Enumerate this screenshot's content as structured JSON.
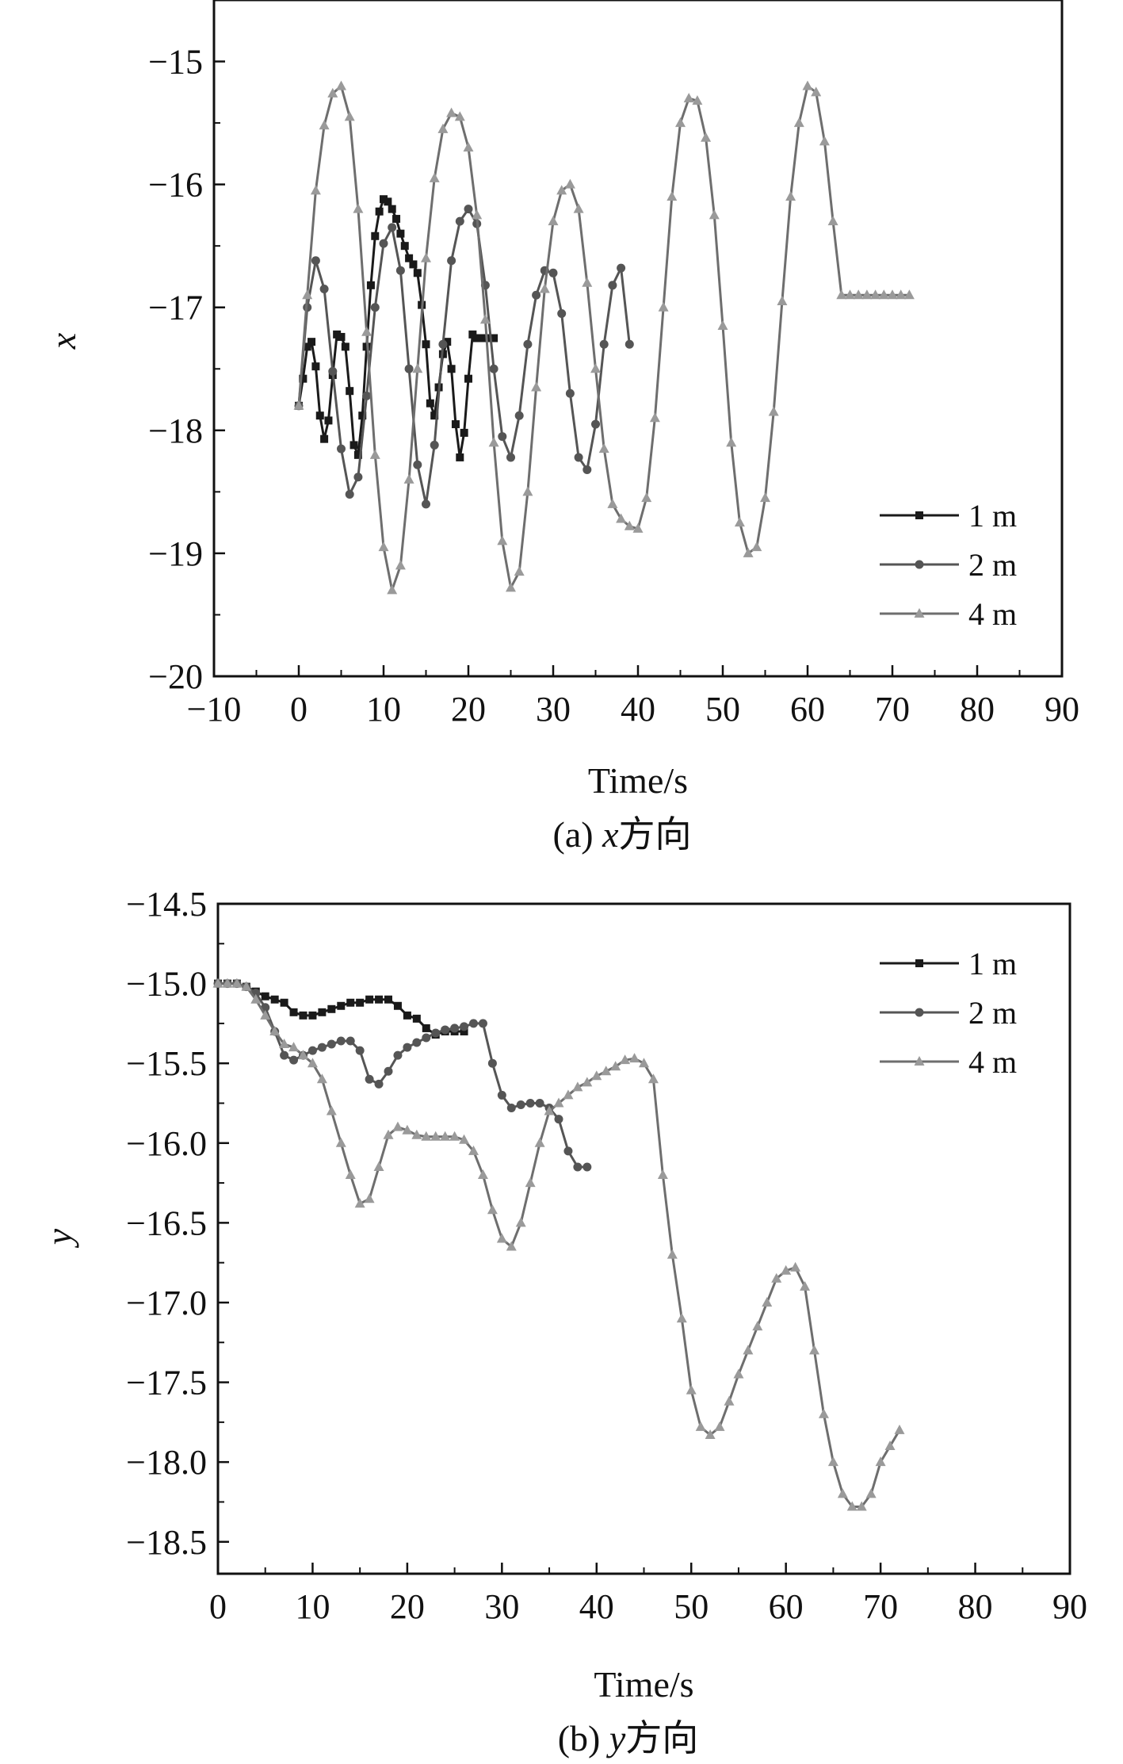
{
  "chart_data": [
    {
      "type": "line",
      "xlabel": "Time/s",
      "ylabel": "x",
      "caption_prefix": "(a)",
      "caption_var": "x",
      "caption_suffix": "方向",
      "xlim": [
        -10,
        90
      ],
      "ylim": [
        -20,
        -14.5
      ],
      "xticks": [
        -10,
        0,
        10,
        20,
        30,
        40,
        50,
        60,
        70,
        80,
        90
      ],
      "yticks": [
        -20,
        -19,
        -18,
        -17,
        -16,
        -15
      ],
      "ytick_labels": [
        "−20",
        "−19",
        "−18",
        "−17",
        "−16",
        "−15"
      ],
      "xtick_labels": [
        "−10",
        "0",
        "10",
        "20",
        "30",
        "40",
        "50",
        "60",
        "70",
        "80",
        "90"
      ],
      "legend_position": "bottom-right",
      "series": [
        {
          "name": "1 m",
          "marker": "square",
          "color": "#1a1a1a",
          "x": [
            0,
            0.5,
            1,
            1.5,
            2,
            2.5,
            3,
            3.5,
            4,
            4.5,
            5,
            5.5,
            6,
            6.5,
            7,
            7.5,
            8,
            8.5,
            9,
            9.5,
            10,
            10.5,
            11,
            11.5,
            12,
            12.5,
            13,
            13.5,
            14,
            14.5,
            15,
            15.5,
            16,
            16.5,
            17,
            17.5,
            18,
            18.5,
            19,
            19.5,
            20,
            20.5,
            21,
            21.5,
            22,
            22.5,
            23
          ],
          "y": [
            -17.8,
            -17.58,
            -17.32,
            -17.28,
            -17.48,
            -17.88,
            -18.07,
            -17.92,
            -17.55,
            -17.22,
            -17.24,
            -17.32,
            -17.68,
            -18.12,
            -18.2,
            -17.88,
            -17.32,
            -16.82,
            -16.42,
            -16.22,
            -16.12,
            -16.14,
            -16.2,
            -16.28,
            -16.4,
            -16.5,
            -16.6,
            -16.65,
            -16.72,
            -16.98,
            -17.3,
            -17.78,
            -17.88,
            -17.65,
            -17.38,
            -17.28,
            -17.5,
            -17.95,
            -18.22,
            -18.02,
            -17.58,
            -17.22,
            -17.25,
            -17.25,
            -17.25,
            -17.25,
            -17.25
          ]
        },
        {
          "name": "2 m",
          "marker": "circle",
          "color": "#555555",
          "x": [
            0,
            1,
            2,
            3,
            4,
            5,
            6,
            7,
            8,
            9,
            10,
            11,
            12,
            13,
            14,
            15,
            16,
            17,
            18,
            19,
            20,
            21,
            22,
            23,
            24,
            25,
            26,
            27,
            28,
            29,
            30,
            31,
            32,
            33,
            34,
            35,
            36,
            37,
            38,
            39
          ],
          "y": [
            -17.8,
            -17.0,
            -16.62,
            -16.85,
            -17.52,
            -18.15,
            -18.52,
            -18.38,
            -17.72,
            -17.0,
            -16.48,
            -16.35,
            -16.7,
            -17.5,
            -18.28,
            -18.6,
            -18.12,
            -17.3,
            -16.62,
            -16.3,
            -16.2,
            -16.32,
            -16.82,
            -17.5,
            -18.05,
            -18.22,
            -17.88,
            -17.3,
            -16.9,
            -16.7,
            -16.72,
            -17.05,
            -17.7,
            -18.22,
            -18.32,
            -17.95,
            -17.3,
            -16.82,
            -16.68,
            -17.3
          ]
        },
        {
          "name": "4 m",
          "marker": "triangle",
          "color": "#6e6e6e",
          "x": [
            0,
            1,
            2,
            3,
            4,
            5,
            6,
            7,
            8,
            9,
            10,
            11,
            12,
            13,
            14,
            15,
            16,
            17,
            18,
            19,
            20,
            21,
            22,
            23,
            24,
            25,
            26,
            27,
            28,
            29,
            30,
            31,
            32,
            33,
            34,
            35,
            36,
            37,
            38,
            39,
            40,
            41,
            42,
            43,
            44,
            45,
            46,
            47,
            48,
            49,
            50,
            51,
            52,
            53,
            54,
            55,
            56,
            57,
            58,
            59,
            60,
            61,
            62,
            63,
            64,
            65,
            66,
            67,
            68,
            69,
            70,
            71,
            72
          ],
          "y": [
            -17.8,
            -16.9,
            -16.05,
            -15.52,
            -15.26,
            -15.2,
            -15.45,
            -16.2,
            -17.2,
            -18.2,
            -18.95,
            -19.3,
            -19.1,
            -18.4,
            -17.5,
            -16.6,
            -15.95,
            -15.55,
            -15.42,
            -15.45,
            -15.7,
            -16.25,
            -17.1,
            -18.1,
            -18.9,
            -19.28,
            -19.15,
            -18.5,
            -17.65,
            -16.85,
            -16.3,
            -16.05,
            -16.0,
            -16.2,
            -16.8,
            -17.5,
            -18.15,
            -18.6,
            -18.72,
            -18.78,
            -18.8,
            -18.55,
            -17.9,
            -17.0,
            -16.1,
            -15.5,
            -15.3,
            -15.32,
            -15.62,
            -16.25,
            -17.15,
            -18.1,
            -18.75,
            -19.0,
            -18.95,
            -18.55,
            -17.85,
            -16.95,
            -16.1,
            -15.5,
            -15.2,
            -15.25,
            -15.65,
            -16.3,
            -16.9,
            -16.9,
            -16.9,
            -16.9,
            -16.9,
            -16.9,
            -16.9,
            -16.9,
            -16.9
          ]
        }
      ]
    },
    {
      "type": "line",
      "xlabel": "Time/s",
      "ylabel": "y",
      "caption_prefix": "(b)",
      "caption_var": "y",
      "caption_suffix": "方向",
      "xlim": [
        0,
        90
      ],
      "ylim": [
        -18.7,
        -14.5
      ],
      "xticks": [
        0,
        10,
        20,
        30,
        40,
        50,
        60,
        70,
        80,
        90
      ],
      "xtick_labels": [
        "0",
        "10",
        "20",
        "30",
        "40",
        "50",
        "60",
        "70",
        "80",
        "90"
      ],
      "yticks": [
        -18.5,
        -18.0,
        -17.5,
        -17.0,
        -16.5,
        -16.0,
        -15.5,
        -15.0,
        -14.5
      ],
      "ytick_labels": [
        "−18.5",
        "−18.0",
        "−17.5",
        "−17.0",
        "−16.5",
        "−16.0",
        "−15.5",
        "−15.0",
        "−14.5"
      ],
      "legend_position": "top-right",
      "series": [
        {
          "name": "1 m",
          "marker": "square",
          "color": "#1a1a1a",
          "x": [
            0,
            1,
            2,
            3,
            4,
            5,
            6,
            7,
            8,
            9,
            10,
            11,
            12,
            13,
            14,
            15,
            16,
            17,
            18,
            19,
            20,
            21,
            22,
            23,
            24,
            25,
            26
          ],
          "y": [
            -15.0,
            -15.0,
            -15.0,
            -15.02,
            -15.05,
            -15.08,
            -15.1,
            -15.12,
            -15.18,
            -15.2,
            -15.2,
            -15.18,
            -15.16,
            -15.14,
            -15.12,
            -15.12,
            -15.1,
            -15.1,
            -15.1,
            -15.14,
            -15.2,
            -15.22,
            -15.28,
            -15.32,
            -15.3,
            -15.3,
            -15.3
          ]
        },
        {
          "name": "2 m",
          "marker": "circle",
          "color": "#555555",
          "x": [
            0,
            1,
            2,
            3,
            4,
            5,
            6,
            7,
            8,
            9,
            10,
            11,
            12,
            13,
            14,
            15,
            16,
            17,
            18,
            19,
            20,
            21,
            22,
            23,
            24,
            25,
            26,
            27,
            28,
            29,
            30,
            31,
            32,
            33,
            34,
            35,
            36,
            37,
            38,
            39
          ],
          "y": [
            -15.0,
            -15.0,
            -15.0,
            -15.02,
            -15.06,
            -15.15,
            -15.3,
            -15.45,
            -15.48,
            -15.45,
            -15.42,
            -15.4,
            -15.38,
            -15.36,
            -15.36,
            -15.42,
            -15.6,
            -15.63,
            -15.55,
            -15.45,
            -15.4,
            -15.37,
            -15.34,
            -15.31,
            -15.29,
            -15.28,
            -15.27,
            -15.25,
            -15.25,
            -15.5,
            -15.7,
            -15.78,
            -15.76,
            -15.75,
            -15.75,
            -15.78,
            -15.85,
            -16.05,
            -16.15,
            -16.15
          ]
        },
        {
          "name": "4 m",
          "marker": "triangle",
          "color": "#6e6e6e",
          "x": [
            0,
            1,
            2,
            3,
            4,
            5,
            6,
            7,
            8,
            9,
            10,
            11,
            12,
            13,
            14,
            15,
            16,
            17,
            18,
            19,
            20,
            21,
            22,
            23,
            24,
            25,
            26,
            27,
            28,
            29,
            30,
            31,
            32,
            33,
            34,
            35,
            36,
            37,
            38,
            39,
            40,
            41,
            42,
            43,
            44,
            45,
            46,
            47,
            48,
            49,
            50,
            51,
            52,
            53,
            54,
            55,
            56,
            57,
            58,
            59,
            60,
            61,
            62,
            63,
            64,
            65,
            66,
            67,
            68,
            69,
            70,
            71,
            72
          ],
          "y": [
            -15.0,
            -15.0,
            -15.0,
            -15.02,
            -15.1,
            -15.2,
            -15.3,
            -15.38,
            -15.4,
            -15.45,
            -15.5,
            -15.6,
            -15.8,
            -16.0,
            -16.2,
            -16.38,
            -16.35,
            -16.15,
            -15.95,
            -15.9,
            -15.92,
            -15.95,
            -15.96,
            -15.96,
            -15.96,
            -15.96,
            -15.98,
            -16.05,
            -16.2,
            -16.42,
            -16.6,
            -16.65,
            -16.5,
            -16.25,
            -16.0,
            -15.8,
            -15.75,
            -15.7,
            -15.65,
            -15.62,
            -15.58,
            -15.55,
            -15.52,
            -15.48,
            -15.47,
            -15.5,
            -15.6,
            -16.2,
            -16.7,
            -17.1,
            -17.55,
            -17.78,
            -17.83,
            -17.78,
            -17.62,
            -17.45,
            -17.3,
            -17.15,
            -17.0,
            -16.85,
            -16.8,
            -16.78,
            -16.9,
            -17.3,
            -17.7,
            -18.0,
            -18.2,
            -18.28,
            -18.28,
            -18.2,
            -18.0,
            -17.9,
            -17.8
          ]
        }
      ]
    }
  ]
}
